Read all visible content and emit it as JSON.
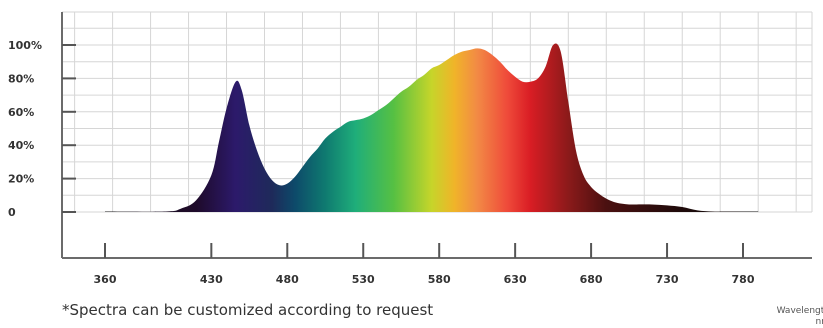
{
  "chart_data": {
    "type": "area",
    "title": "",
    "xlabel": "Wavelength nm",
    "ylabel": "",
    "xlim": [
      340,
      810
    ],
    "ylim": [
      0,
      112
    ],
    "grid": true,
    "y_ticks": [
      0,
      20,
      40,
      60,
      80,
      100
    ],
    "y_tick_labels": [
      "0",
      "20%",
      "40%",
      "60%",
      "80%",
      "100%"
    ],
    "x_ticks": [
      360,
      430,
      480,
      530,
      580,
      630,
      680,
      730,
      780
    ],
    "x": [
      360,
      400,
      410,
      420,
      430,
      435,
      440,
      446,
      450,
      455,
      460,
      465,
      470,
      475,
      480,
      485,
      490,
      495,
      500,
      505,
      510,
      515,
      520,
      525,
      530,
      535,
      540,
      545,
      550,
      555,
      560,
      565,
      570,
      575,
      580,
      585,
      590,
      595,
      600,
      605,
      610,
      615,
      620,
      625,
      630,
      635,
      640,
      645,
      650,
      655,
      660,
      665,
      670,
      675,
      680,
      685,
      690,
      695,
      700,
      705,
      710,
      720,
      730,
      740,
      750,
      760,
      770,
      790
    ],
    "values": [
      0.3,
      0.3,
      2,
      7,
      22,
      42,
      62,
      78,
      73,
      52,
      37,
      26,
      19,
      16,
      17,
      21,
      27,
      33,
      38,
      44,
      48,
      51,
      54,
      55,
      56,
      58,
      61,
      64,
      68,
      72,
      75,
      79,
      82,
      86,
      88,
      91,
      94,
      96,
      97,
      98,
      97,
      94,
      90,
      85,
      81,
      78,
      78,
      80,
      87,
      100,
      96,
      66,
      37,
      22,
      15,
      11,
      8,
      6,
      5,
      4.5,
      4.5,
      4.5,
      4,
      3,
      1,
      0.3,
      0.3,
      0.3
    ],
    "color_stops": [
      {
        "nm": 360,
        "color": "#1a1a1a"
      },
      {
        "nm": 420,
        "color": "#1e0a2a"
      },
      {
        "nm": 446,
        "color": "#2c1a6b"
      },
      {
        "nm": 470,
        "color": "#1e2a5a"
      },
      {
        "nm": 485,
        "color": "#0d4a6a"
      },
      {
        "nm": 505,
        "color": "#0f7a70"
      },
      {
        "nm": 525,
        "color": "#1fae7a"
      },
      {
        "nm": 550,
        "color": "#56c043"
      },
      {
        "nm": 575,
        "color": "#c6d52a"
      },
      {
        "nm": 590,
        "color": "#f0b429"
      },
      {
        "nm": 605,
        "color": "#f28a45"
      },
      {
        "nm": 625,
        "color": "#ef4a3a"
      },
      {
        "nm": 640,
        "color": "#d91d24"
      },
      {
        "nm": 665,
        "color": "#8b1a1a"
      },
      {
        "nm": 690,
        "color": "#4a1010"
      },
      {
        "nm": 740,
        "color": "#1e0a0a"
      },
      {
        "nm": 790,
        "color": "#101010"
      }
    ]
  },
  "footnote": "*Spectra can be customized according to request",
  "unit_label_line1": "Wavelength",
  "unit_label_line2": "nm"
}
